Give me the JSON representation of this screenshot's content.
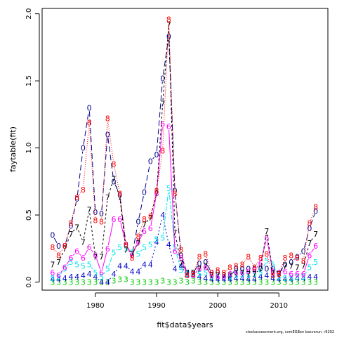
{
  "chart_data": {
    "type": "line",
    "title": "",
    "xlabel": "fit$data$years",
    "ylabel": "faytable(fit)",
    "xlim": [
      1971.3,
      2018.0
    ],
    "ylim": [
      -0.06,
      2.04
    ],
    "x_ticks": [
      1980,
      1990,
      2000,
      2010
    ],
    "y_ticks": [
      0.0,
      0.5,
      1.0,
      1.5,
      2.0
    ],
    "x_tick_labels": [
      "1980",
      "1990",
      "2000",
      "2010"
    ],
    "y_tick_labels": [
      "0.0",
      "0.5",
      "1.0",
      "1.5",
      "2.0"
    ],
    "grid": false,
    "x": [
      1973,
      1974,
      1975,
      1976,
      1977,
      1978,
      1979,
      1980,
      1981,
      1982,
      1983,
      1984,
      1985,
      1986,
      1987,
      1988,
      1989,
      1990,
      1991,
      1992,
      1993,
      1994,
      1995,
      1996,
      1997,
      1998,
      1999,
      2000,
      2001,
      2002,
      2003,
      2004,
      2005,
      2006,
      2007,
      2008,
      2009,
      2010,
      2011,
      2012,
      2013,
      2014,
      2015,
      2016
    ],
    "series": [
      {
        "name": "0",
        "glyph": "0",
        "color": "#00008b",
        "dash": "8,4",
        "values": [
          0.35,
          0.27,
          0.27,
          0.42,
          0.62,
          1.0,
          1.3,
          0.52,
          0.51,
          1.1,
          0.75,
          0.65,
          0.28,
          0.2,
          0.45,
          0.67,
          0.9,
          0.95,
          1.52,
          1.83,
          0.68,
          0.2,
          0.07,
          0.07,
          0.14,
          0.15,
          0.07,
          0.07,
          0.04,
          0.04,
          0.1,
          0.1,
          0.1,
          0.1,
          0.1,
          0.1,
          0.1,
          0.07,
          0.13,
          0.15,
          0.19,
          0.23,
          0.4,
          0.53
        ]
      },
      {
        "name": "3",
        "glyph": "3",
        "color": "#00cd00",
        "dash": "",
        "values": [
          0.0,
          0.0,
          0.0,
          0.0,
          0.0,
          0.0,
          0.0,
          0.0,
          0.0,
          0.0,
          0.01,
          0.02,
          0.02,
          0.0,
          0.0,
          0.0,
          0.0,
          0.0,
          0.01,
          0.0,
          0.0,
          0.01,
          0.0,
          0.01,
          0.0,
          0.0,
          0.0,
          0.0,
          0.0,
          0.0,
          0.0,
          0.0,
          0.0,
          0.0,
          0.0,
          0.0,
          0.0,
          0.0,
          0.0,
          0.0,
          0.0,
          0.0,
          0.0,
          0.0
        ]
      },
      {
        "name": "4",
        "glyph": "4",
        "color": "#0000cd",
        "dash": "2,3",
        "values": [
          0.02,
          0.02,
          0.03,
          0.04,
          0.04,
          0.05,
          0.06,
          0.04,
          0.0,
          0.0,
          0.06,
          0.12,
          0.12,
          0.08,
          0.08,
          0.13,
          0.13,
          0.3,
          0.5,
          0.28,
          0.1,
          0.12,
          0.05,
          0.05,
          0.04,
          0.03,
          0.02,
          0.02,
          0.02,
          0.02,
          0.03,
          0.03,
          0.02,
          0.02,
          0.04,
          0.05,
          0.03,
          0.02,
          0.02,
          0.02,
          0.03,
          0.03,
          0.04,
          0.04
        ]
      },
      {
        "name": "5",
        "glyph": "5",
        "color": "#00e5ee",
        "dash": "3,2,7,2",
        "values": [
          0.03,
          0.04,
          0.1,
          0.15,
          0.13,
          0.12,
          0.13,
          0.07,
          0.04,
          0.1,
          0.22,
          0.26,
          0.25,
          0.22,
          0.21,
          0.26,
          0.28,
          0.32,
          0.33,
          0.7,
          0.26,
          0.09,
          0.06,
          0.05,
          0.06,
          0.07,
          0.04,
          0.04,
          0.04,
          0.04,
          0.05,
          0.06,
          0.05,
          0.06,
          0.07,
          0.16,
          0.13,
          0.04,
          0.03,
          0.03,
          0.04,
          0.04,
          0.11,
          0.15
        ]
      },
      {
        "name": "6",
        "glyph": "6",
        "color": "#ff00ff",
        "dash": "",
        "values": [
          0.07,
          0.05,
          0.11,
          0.18,
          0.23,
          0.18,
          0.26,
          0.2,
          0.07,
          0.25,
          0.47,
          0.47,
          0.28,
          0.2,
          0.3,
          0.38,
          0.4,
          0.66,
          1.18,
          1.16,
          0.23,
          0.18,
          0.05,
          0.05,
          0.1,
          0.11,
          0.05,
          0.04,
          0.04,
          0.06,
          0.07,
          0.07,
          0.08,
          0.09,
          0.14,
          0.33,
          0.08,
          0.07,
          0.08,
          0.06,
          0.06,
          0.06,
          0.2,
          0.27
        ]
      },
      {
        "name": "7",
        "glyph": "7",
        "color": "#000000",
        "dash": "3,3",
        "values": [
          0.13,
          0.15,
          0.25,
          0.36,
          0.41,
          0.3,
          0.54,
          0.19,
          0.19,
          0.63,
          0.77,
          0.63,
          0.24,
          0.21,
          0.29,
          0.43,
          0.48,
          0.66,
          1.33,
          1.92,
          0.37,
          0.14,
          0.07,
          0.07,
          0.1,
          0.12,
          0.05,
          0.05,
          0.05,
          0.05,
          0.07,
          0.07,
          0.06,
          0.06,
          0.1,
          0.38,
          0.07,
          0.06,
          0.12,
          0.12,
          0.11,
          0.12,
          0.29,
          0.36
        ]
      },
      {
        "name": "8",
        "glyph": "8",
        "color": "#ff0000",
        "dash": "1,2",
        "values": [
          0.26,
          0.2,
          0.27,
          0.44,
          0.63,
          0.69,
          1.19,
          0.46,
          0.45,
          1.22,
          0.88,
          0.66,
          0.28,
          0.18,
          0.34,
          0.47,
          0.49,
          0.68,
          0.98,
          1.96,
          0.66,
          0.24,
          0.05,
          0.06,
          0.19,
          0.21,
          0.07,
          0.09,
          0.07,
          0.11,
          0.12,
          0.13,
          0.19,
          0.11,
          0.18,
          0.21,
          0.05,
          0.06,
          0.18,
          0.2,
          0.18,
          0.16,
          0.44,
          0.56
        ]
      }
    ]
  },
  "footer_text": "stockassessment.org, comEGBen basverun, r9292"
}
